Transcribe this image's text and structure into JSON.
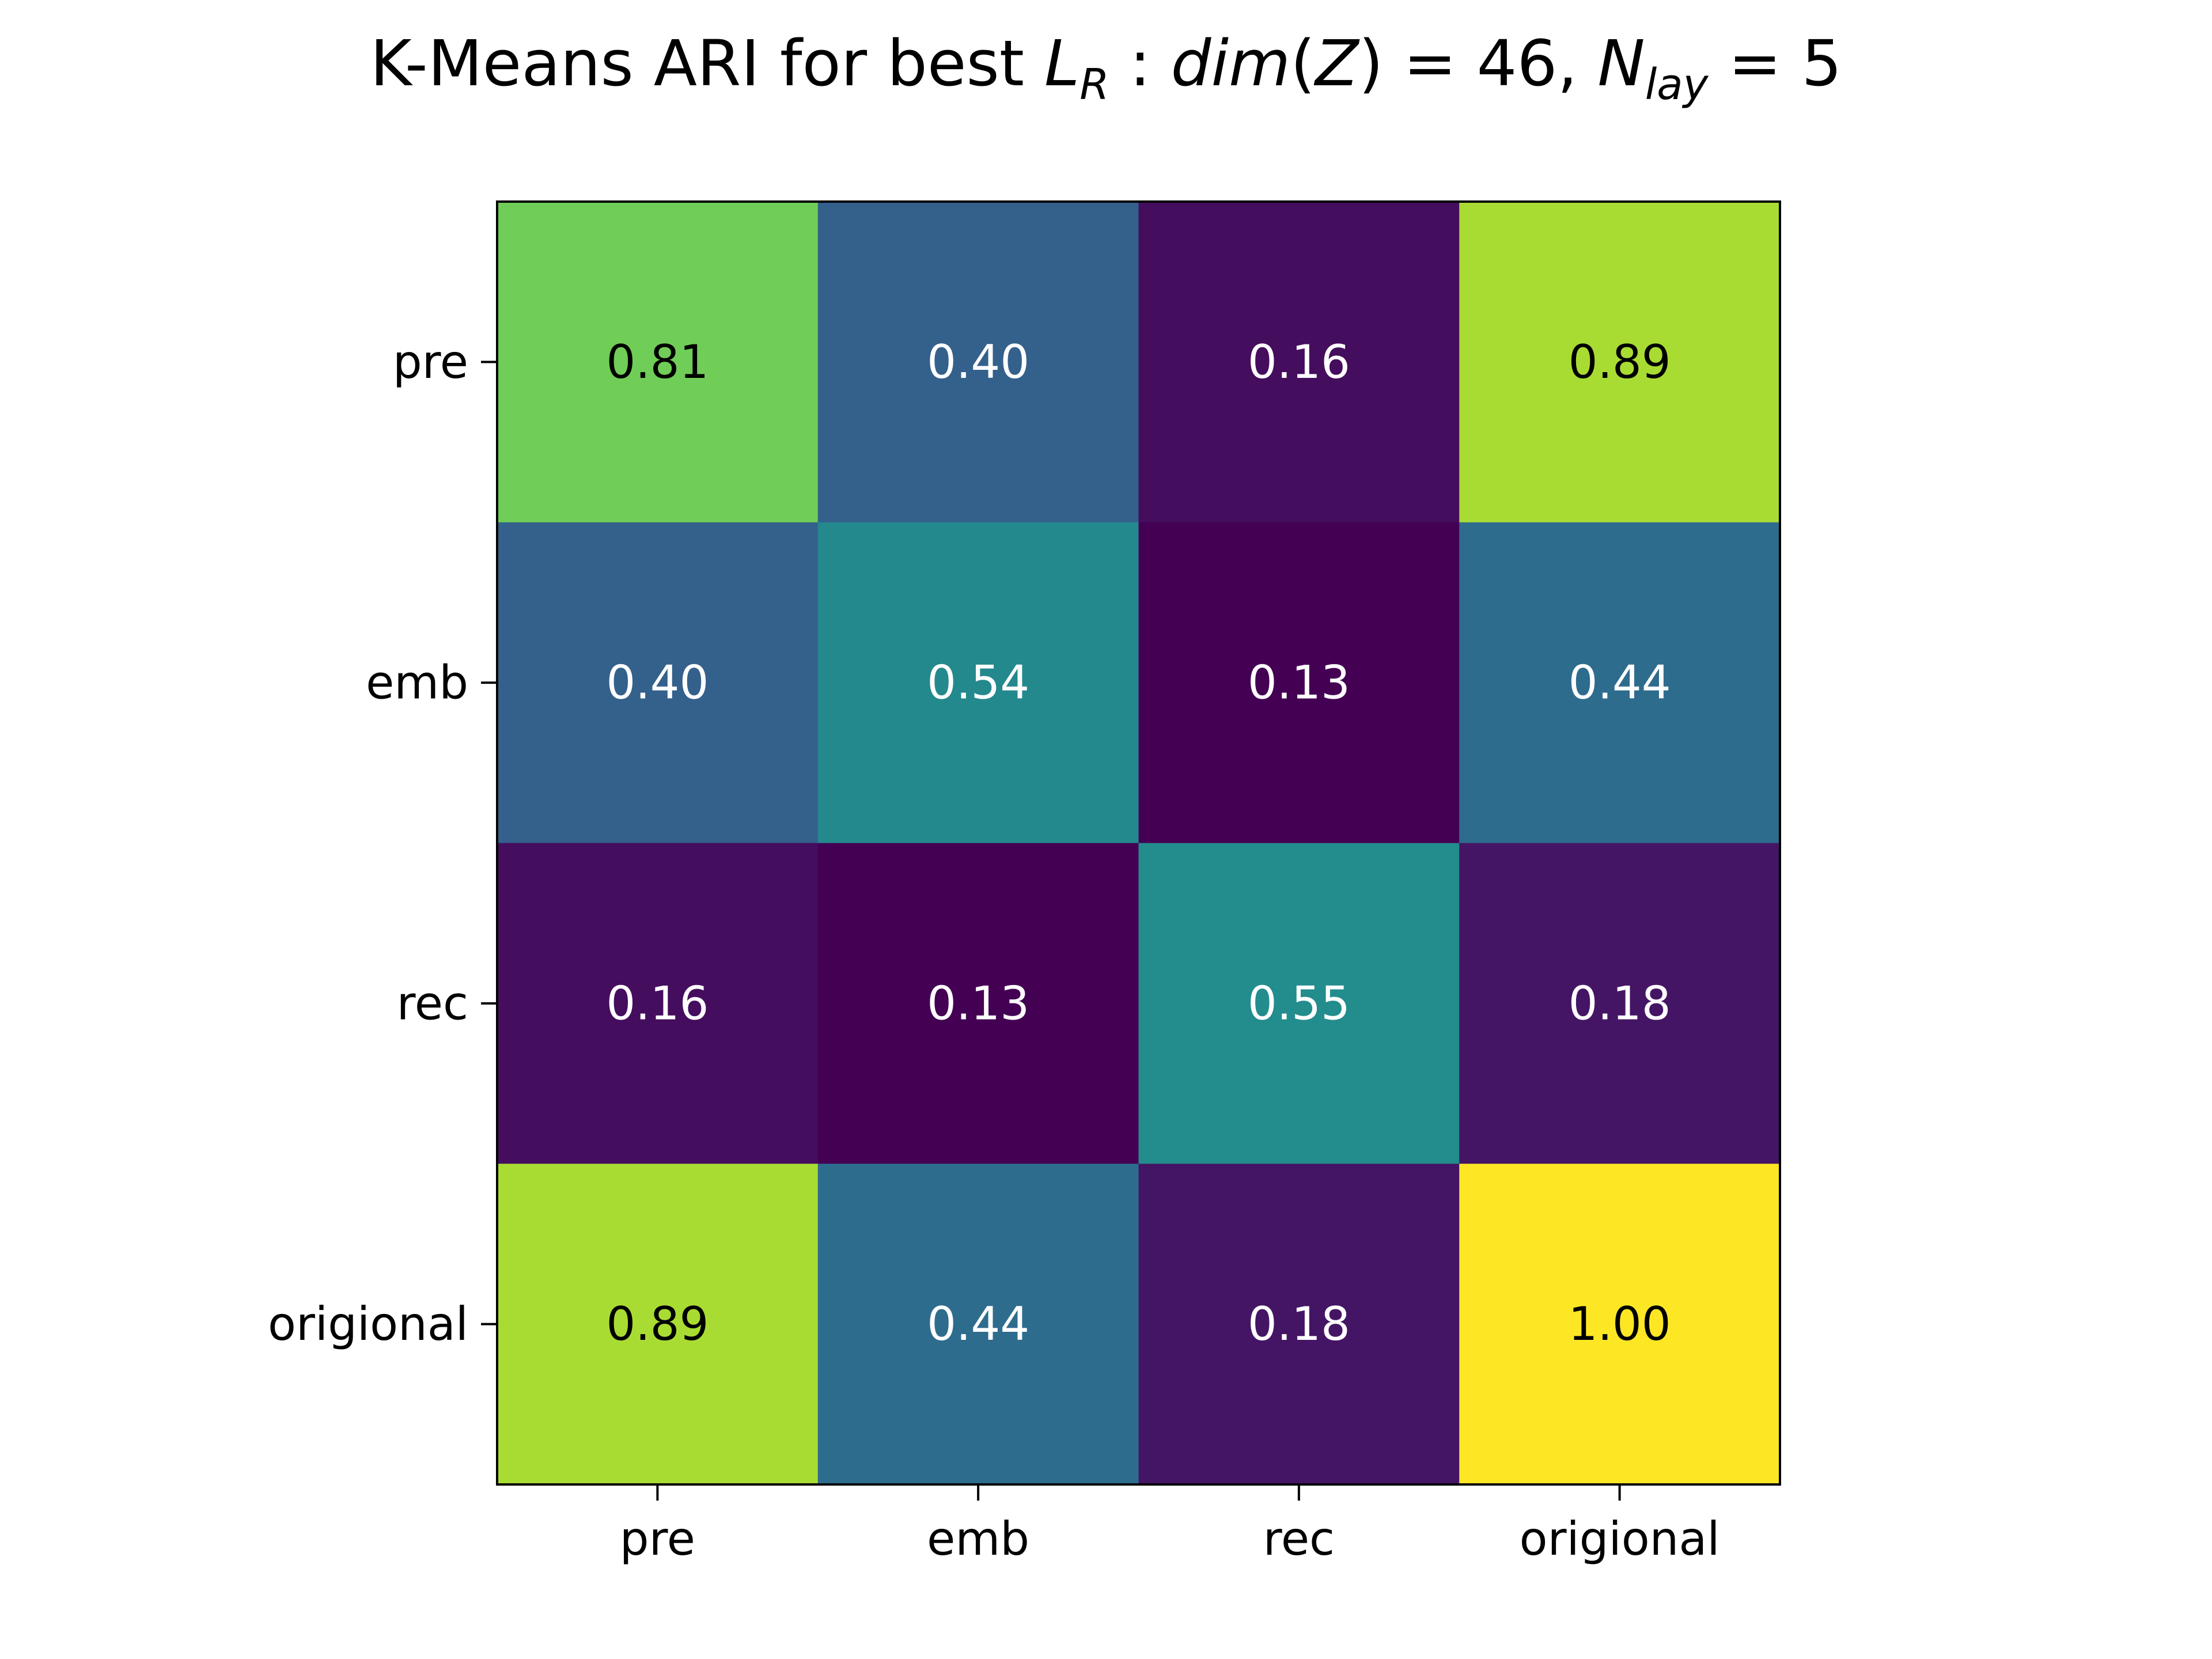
{
  "chart_data": {
    "type": "heatmap",
    "title": {
      "prefix": "K-Means ARI for best ",
      "lr_base": "L",
      "lr_sub": "R",
      "separator": " : ",
      "dim_text": "dim",
      "dim_open": "(",
      "dim_var": "Z",
      "dim_close": ")",
      "eq1": " = 46, ",
      "n_base": "N",
      "n_sub": "lay",
      "eq2": " = 5"
    },
    "rows": [
      "pre",
      "emb",
      "rec",
      "origional"
    ],
    "columns": [
      "pre",
      "emb",
      "rec",
      "origional"
    ],
    "values": [
      [
        0.81,
        0.4,
        0.16,
        0.89
      ],
      [
        0.4,
        0.54,
        0.13,
        0.44
      ],
      [
        0.16,
        0.13,
        0.55,
        0.18
      ],
      [
        0.89,
        0.44,
        0.18,
        1.0
      ]
    ],
    "value_format_decimals": 2,
    "colormap": "viridis",
    "text_color_light": "#ffffff",
    "text_color_dark": "#000000"
  }
}
